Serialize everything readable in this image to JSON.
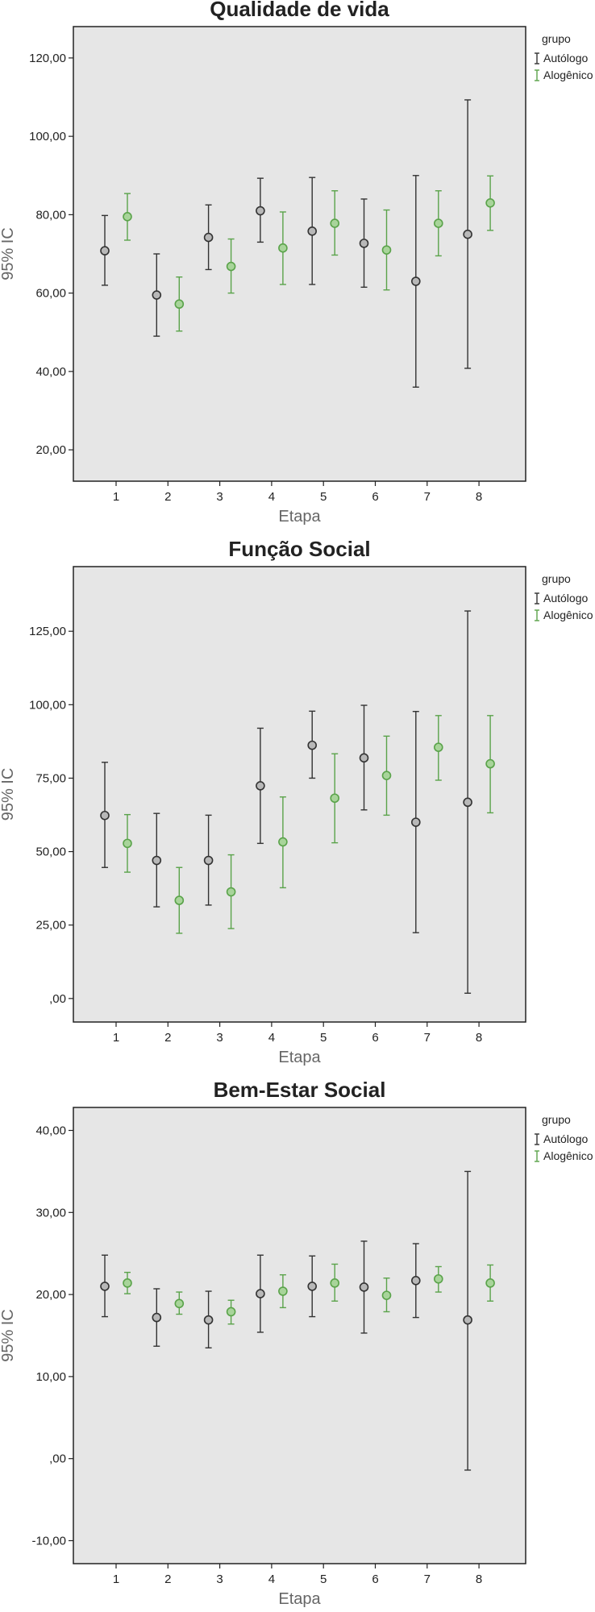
{
  "colors": {
    "autologo": "#333333",
    "alogenico": "#5aa34a",
    "alogenico_fill": "#a8d49a",
    "autologo_fill": "#b8b8b8",
    "plot_bg": "#e6e6e6"
  },
  "chart_data": [
    {
      "type": "errorbar",
      "title": "Qualidade de vida",
      "xlabel": "Etapa",
      "ylabel": "95% IC",
      "categories": [
        "1",
        "2",
        "3",
        "4",
        "5",
        "6",
        "7",
        "8"
      ],
      "yticks": [
        "20,00",
        "40,00",
        "60,00",
        "80,00",
        "100,00",
        "120,00"
      ],
      "tick_values": [
        20,
        40,
        60,
        80,
        100,
        120
      ],
      "ylim": [
        12,
        128
      ],
      "legend": {
        "title": "grupo",
        "placement": "right"
      },
      "series": [
        {
          "name": "Autólogo",
          "mean": [
            70.8,
            59.5,
            74.2,
            81.0,
            75.8,
            72.7,
            63.0,
            75.0
          ],
          "lower": [
            62.0,
            49.0,
            66.0,
            73.0,
            62.2,
            61.5,
            36.0,
            40.8
          ],
          "upper": [
            79.8,
            70.0,
            82.5,
            89.3,
            89.5,
            84.0,
            90.0,
            109.3
          ]
        },
        {
          "name": "Alogênico",
          "mean": [
            79.5,
            57.2,
            66.8,
            71.5,
            77.8,
            71.0,
            77.8,
            83.0
          ],
          "lower": [
            73.5,
            50.3,
            60.0,
            62.2,
            69.7,
            60.8,
            69.5,
            76.0
          ],
          "upper": [
            85.4,
            64.1,
            73.8,
            80.7,
            86.1,
            81.2,
            86.1,
            89.9
          ]
        }
      ]
    },
    {
      "type": "errorbar",
      "title": "Função Social",
      "xlabel": "Etapa",
      "ylabel": "95% IC",
      "categories": [
        "1",
        "2",
        "3",
        "4",
        "5",
        "6",
        "7",
        "8"
      ],
      "yticks": [
        ",00",
        "25,00",
        "50,00",
        "75,00",
        "100,00",
        "125,00"
      ],
      "tick_values": [
        0,
        25,
        50,
        75,
        100,
        125
      ],
      "ylim": [
        -8,
        147
      ],
      "legend": {
        "title": "grupo",
        "placement": "right"
      },
      "series": [
        {
          "name": "Autólogo",
          "mean": [
            62.3,
            47.0,
            47.0,
            72.4,
            86.2,
            81.9,
            60.0,
            66.8
          ],
          "lower": [
            44.6,
            31.2,
            31.8,
            52.8,
            75.0,
            64.2,
            22.4,
            1.8
          ],
          "upper": [
            80.4,
            63.0,
            62.4,
            92.0,
            97.8,
            99.8,
            97.7,
            131.9
          ]
        },
        {
          "name": "Alogênico",
          "mean": [
            52.8,
            33.4,
            36.3,
            53.3,
            68.2,
            75.9,
            85.5,
            79.9
          ],
          "lower": [
            43.0,
            22.2,
            23.8,
            37.7,
            53.0,
            62.4,
            74.3,
            63.2
          ],
          "upper": [
            62.6,
            44.6,
            48.9,
            68.6,
            83.3,
            89.3,
            96.3,
            96.3
          ]
        }
      ]
    },
    {
      "type": "errorbar",
      "title": "Bem-Estar Social",
      "xlabel": "Etapa",
      "ylabel": "95% IC",
      "categories": [
        "1",
        "2",
        "3",
        "4",
        "5",
        "6",
        "7",
        "8"
      ],
      "yticks": [
        "-10,00",
        ",00",
        "10,00",
        "20,00",
        "30,00",
        "40,00"
      ],
      "tick_values": [
        -10,
        0,
        10,
        20,
        30,
        40
      ],
      "ylim": [
        -12.8,
        42.8
      ],
      "legend": {
        "title": "grupo",
        "placement": "right"
      },
      "series": [
        {
          "name": "Autólogo",
          "mean": [
            21.0,
            17.2,
            16.9,
            20.1,
            21.0,
            20.9,
            21.7,
            16.9
          ],
          "lower": [
            17.3,
            13.7,
            13.5,
            15.4,
            17.3,
            15.3,
            17.2,
            -1.4
          ],
          "upper": [
            24.8,
            20.7,
            20.4,
            24.8,
            24.7,
            26.5,
            26.2,
            35.0
          ]
        },
        {
          "name": "Alogênico",
          "mean": [
            21.4,
            18.9,
            17.9,
            20.4,
            21.4,
            19.9,
            21.9,
            21.4
          ],
          "lower": [
            20.1,
            17.6,
            16.4,
            18.4,
            19.2,
            17.9,
            20.3,
            19.2
          ],
          "upper": [
            22.7,
            20.3,
            19.3,
            22.4,
            23.7,
            22.0,
            23.4,
            23.6
          ]
        }
      ]
    }
  ]
}
